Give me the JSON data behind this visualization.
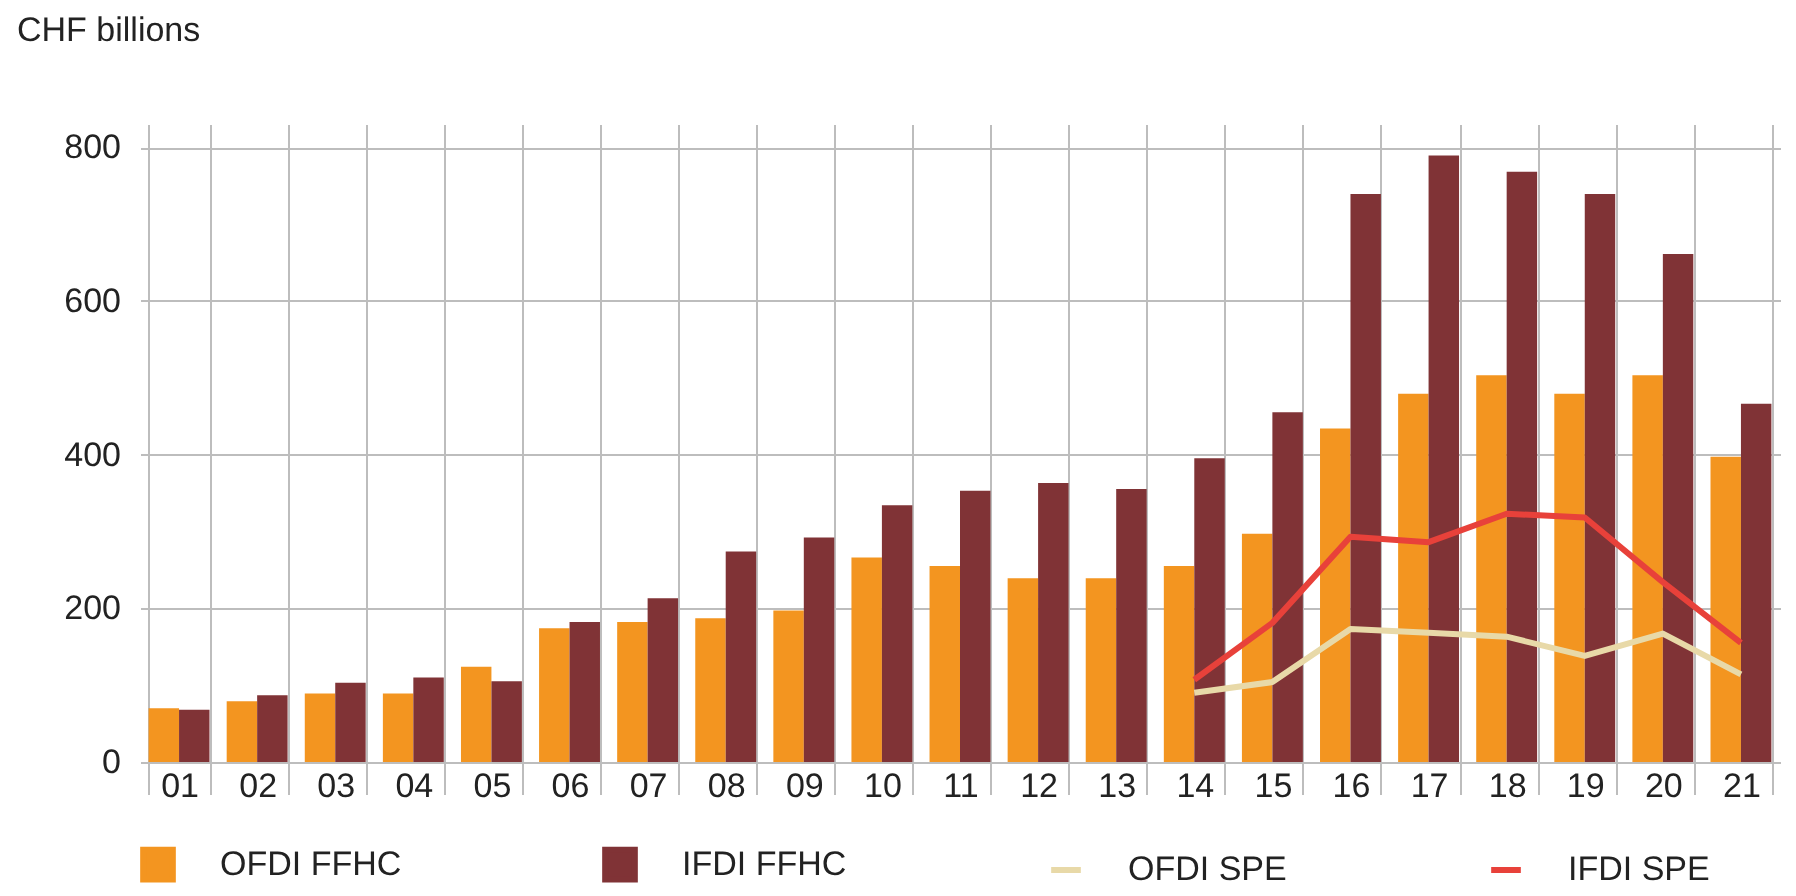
{
  "chart_data": {
    "type": "bar",
    "ylabel": "CHF billions",
    "categories": [
      "01",
      "02",
      "03",
      "04",
      "05",
      "06",
      "07",
      "08",
      "09",
      "10",
      "11",
      "12",
      "13",
      "14",
      "15",
      "16",
      "17",
      "18",
      "19",
      "20",
      "21"
    ],
    "series": [
      {
        "name": "OFDI FFHC",
        "color": "#f39520",
        "values": [
          70,
          79,
          89,
          89,
          124,
          174,
          182,
          187,
          197,
          266,
          255,
          239,
          239,
          255,
          297,
          434,
          479,
          503,
          479,
          503,
          397
        ]
      },
      {
        "name": "IFDI FFHC",
        "color": "#803336",
        "values": [
          68,
          87,
          103,
          110,
          105,
          182,
          213,
          274,
          292,
          334,
          353,
          363,
          355,
          395,
          455,
          739,
          789,
          768,
          739,
          661,
          466
        ]
      },
      {
        "name": "OFDI SPE",
        "type": "line",
        "color": "#e8d9a8",
        "values": [
          null,
          null,
          null,
          null,
          null,
          null,
          null,
          null,
          null,
          null,
          null,
          null,
          null,
          90,
          104,
          173,
          168,
          163,
          138,
          167,
          114
        ]
      },
      {
        "name": "IFDI SPE",
        "type": "line",
        "color": "#e8413a",
        "values": [
          null,
          null,
          null,
          null,
          null,
          null,
          null,
          null,
          null,
          null,
          null,
          null,
          null,
          107,
          181,
          293,
          286,
          323,
          318,
          234,
          155
        ]
      }
    ],
    "ylim": [
      0,
      830
    ],
    "yticks": [
      0,
      200,
      400,
      600,
      800
    ],
    "grid": true,
    "legend": "bottom"
  }
}
